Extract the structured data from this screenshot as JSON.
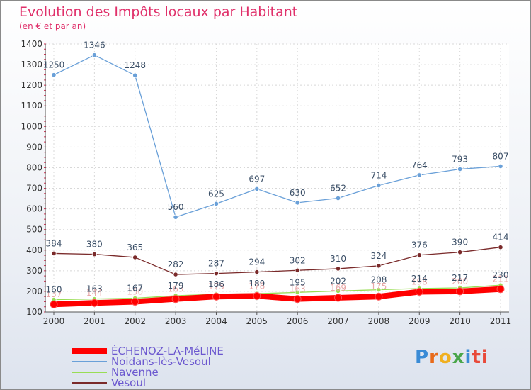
{
  "chart_data": {
    "type": "line",
    "title": "Evolution des Impôts locaux par Habitant",
    "subtitle": "(en € et par an)",
    "x": [
      "2000",
      "2001",
      "2002",
      "2003",
      "2004",
      "2005",
      "2006",
      "2007",
      "2008",
      "2009",
      "2010",
      "2011"
    ],
    "ylim": [
      100,
      1400
    ],
    "yticks": [
      100,
      200,
      300,
      400,
      500,
      600,
      700,
      800,
      900,
      1000,
      1100,
      1200,
      1300,
      1400
    ],
    "series": [
      {
        "name": "ÉCHENOZ-LA-MéLINE",
        "color": "#ff0000",
        "labelColor": "#e8a8a8",
        "values": [
          137,
          144,
          150,
          163,
          175,
          178,
          163,
          169,
          175,
          198,
          200,
          211
        ]
      },
      {
        "name": "Noidans-lès-Vesoul",
        "color": "#6aa0d8",
        "labelColor": "#3a4e66",
        "values": [
          1250,
          1346,
          1248,
          560,
          625,
          697,
          630,
          652,
          714,
          764,
          793,
          807
        ]
      },
      {
        "name": "Navenne",
        "color": "#99dd55",
        "labelColor": "#3a4e66",
        "values": [
          160,
          163,
          167,
          179,
          186,
          189,
          195,
          202,
          208,
          214,
          217,
          230
        ]
      },
      {
        "name": "Vesoul",
        "color": "#7a2a2a",
        "labelColor": "#3a4e66",
        "values": [
          384,
          380,
          365,
          282,
          287,
          294,
          302,
          310,
          324,
          376,
          390,
          414
        ]
      }
    ]
  },
  "logo": [
    "P",
    "r",
    "o",
    "x",
    "i",
    "ti"
  ]
}
